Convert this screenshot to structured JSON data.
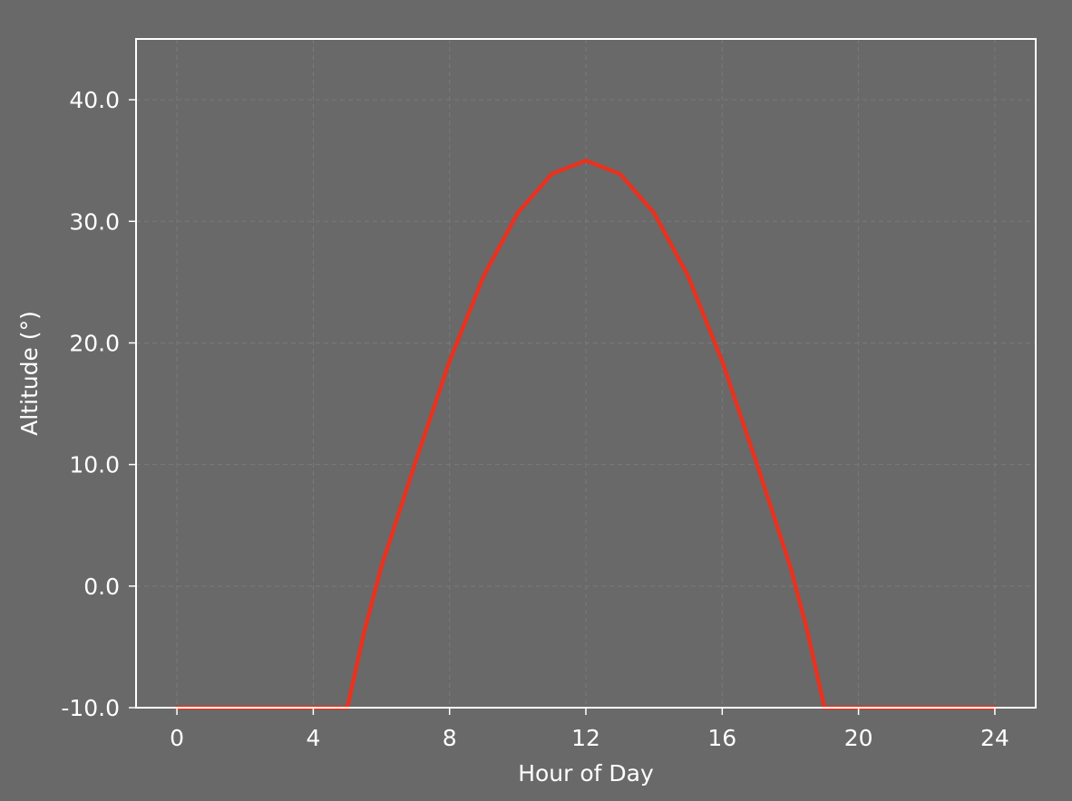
{
  "colors": {
    "background": "#696969",
    "axis": "#ffffff",
    "grid": "#7a7a7a",
    "line": "#e8321f",
    "text": "#ffffff"
  },
  "chart_data": {
    "type": "line",
    "title": "",
    "xlabel": "Hour of Day",
    "ylabel": "Altitude (°)",
    "xlim": [
      -1.2,
      25.2
    ],
    "ylim": [
      -10,
      45
    ],
    "xticks": [
      0,
      4,
      8,
      12,
      16,
      20,
      24
    ],
    "xtick_labels": [
      "0",
      "4",
      "8",
      "12",
      "16",
      "20",
      "24"
    ],
    "yticks": [
      -10,
      0,
      10,
      20,
      30,
      40
    ],
    "ytick_labels": [
      "-10.0",
      "0.0",
      "10.0",
      "20.0",
      "30.0",
      "40.0"
    ],
    "grid": true,
    "legend": "none",
    "series": [
      {
        "color": "#e8321f",
        "x": [
          0,
          1,
          2,
          3,
          4,
          5,
          5.5,
          6,
          7,
          8,
          9,
          10,
          11,
          12,
          13,
          14,
          15,
          16,
          17,
          18,
          18.5,
          19,
          20,
          21,
          22,
          23,
          24
        ],
        "y": [
          -10,
          -10,
          -10,
          -10,
          -10,
          -10,
          -3.7,
          1.6,
          10.2,
          18.5,
          25.5,
          30.7,
          33.9,
          35,
          33.9,
          30.7,
          25.5,
          18.5,
          10.2,
          1.6,
          -3.7,
          -10,
          -10,
          -10,
          -10,
          -10,
          -10
        ]
      }
    ]
  }
}
